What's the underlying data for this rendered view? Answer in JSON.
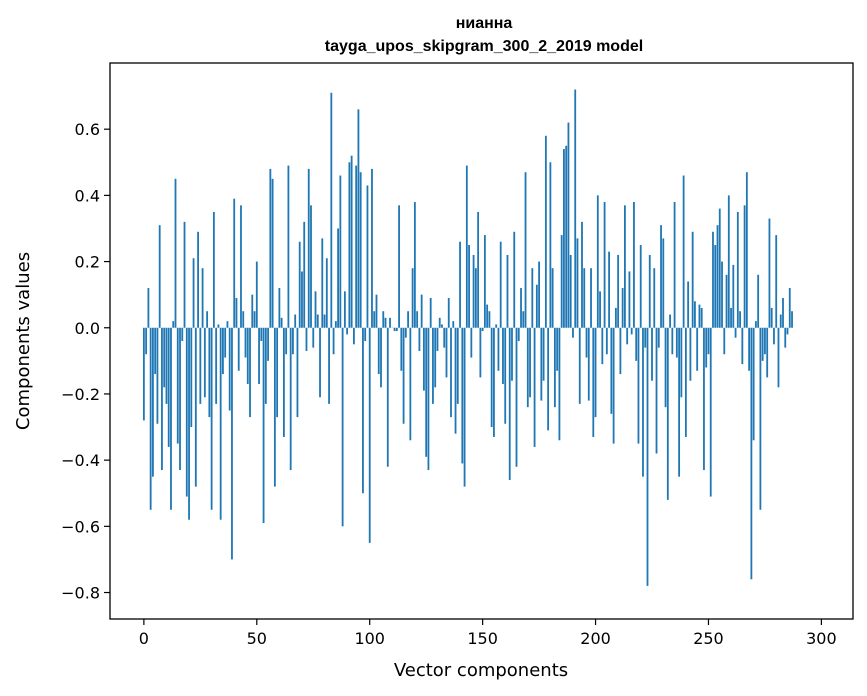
{
  "chart_data": {
    "type": "bar",
    "title": "нианна",
    "subtitle": "tayga_upos_skipgram_300_2_2019 model",
    "xlabel": "Vector components",
    "ylabel": "Components values",
    "xlim": [
      -15,
      314
    ],
    "ylim": [
      -0.88,
      0.8
    ],
    "xticks": [
      0,
      50,
      100,
      150,
      200,
      250,
      300
    ],
    "xtick_labels": [
      "0",
      "50",
      "100",
      "150",
      "200",
      "250",
      "300"
    ],
    "yticks": [
      -0.8,
      -0.6,
      -0.4,
      -0.2,
      0.0,
      0.2,
      0.4,
      0.6
    ],
    "ytick_labels": [
      "−0.8",
      "−0.6",
      "−0.4",
      "−0.2",
      "0.0",
      "0.2",
      "0.4",
      "0.6"
    ],
    "bar_color": "#1f77b4",
    "values": [
      -0.28,
      -0.08,
      0.12,
      -0.55,
      -0.45,
      -0.14,
      -0.29,
      0.31,
      -0.43,
      -0.18,
      -0.23,
      -0.36,
      -0.55,
      0.02,
      0.45,
      -0.35,
      -0.43,
      -0.04,
      0.32,
      -0.51,
      -0.58,
      -0.3,
      0.21,
      -0.48,
      0.29,
      -0.23,
      0.18,
      -0.21,
      0.05,
      -0.27,
      -0.55,
      0.35,
      -0.23,
      0.01,
      -0.58,
      -0.14,
      -0.09,
      0.02,
      -0.25,
      -0.7,
      0.39,
      0.09,
      -0.13,
      0.37,
      0.05,
      -0.09,
      -0.17,
      -0.27,
      0.1,
      0.05,
      0.2,
      -0.17,
      -0.04,
      -0.59,
      -0.23,
      -0.1,
      0.48,
      0.45,
      -0.48,
      -0.27,
      0.12,
      0.03,
      -0.33,
      -0.08,
      0.49,
      -0.43,
      -0.08,
      0.04,
      -0.27,
      0.26,
      0.17,
      0.32,
      -0.07,
      0.48,
      0.37,
      -0.06,
      0.11,
      0.04,
      -0.21,
      0.27,
      0.04,
      0.21,
      -0.23,
      0.71,
      -0.08,
      0.02,
      0.3,
      0.46,
      -0.6,
      0.11,
      -0.02,
      0.5,
      0.52,
      -0.05,
      0.49,
      0.66,
      0.47,
      -0.5,
      -0.04,
      0.43,
      -0.65,
      0.48,
      0.05,
      0.1,
      -0.14,
      -0.18,
      0.05,
      0.03,
      -0.42,
      0.03,
      0.0,
      -0.01,
      -0.01,
      0.37,
      -0.13,
      -0.29,
      -0.03,
      0.05,
      -0.34,
      0.18,
      0.38,
      0.05,
      -0.07,
      0.1,
      -0.19,
      -0.39,
      -0.43,
      0.09,
      -0.23,
      -0.18,
      -0.07,
      0.03,
      0.01,
      -0.06,
      -0.15,
      0.09,
      -0.27,
      0.02,
      -0.32,
      -0.23,
      0.26,
      -0.41,
      -0.48,
      0.49,
      0.25,
      -0.09,
      0.22,
      0.18,
      0.35,
      -0.15,
      -0.01,
      0.28,
      0.07,
      0.05,
      -0.3,
      -0.33,
      0.01,
      -0.13,
      0.26,
      -0.17,
      -0.29,
      0.22,
      -0.46,
      -0.16,
      0.29,
      -0.42,
      -0.04,
      0.12,
      0.05,
      0.47,
      -0.24,
      -0.21,
      0.18,
      -0.36,
      0.13,
      0.2,
      -0.22,
      -0.16,
      0.58,
      -0.31,
      0.5,
      0.18,
      -0.24,
      -0.13,
      -0.34,
      0.28,
      0.54,
      0.55,
      0.62,
      0.22,
      -0.03,
      0.72,
      0.27,
      -0.23,
      0.32,
      0.18,
      -0.09,
      -0.22,
      0.18,
      -0.33,
      -0.27,
      0.4,
      0.11,
      -0.11,
      0.38,
      -0.08,
      0.23,
      -0.26,
      -0.35,
      0.06,
      0.22,
      -0.14,
      0.12,
      0.37,
      -0.05,
      0.17,
      -0.02,
      0.38,
      -0.1,
      -0.35,
      0.25,
      -0.45,
      -0.06,
      -0.78,
      0.22,
      -0.16,
      0.18,
      -0.38,
      -0.06,
      0.31,
      0.27,
      -0.24,
      -0.52,
      0.04,
      -0.08,
      0.38,
      -0.09,
      -0.45,
      -0.21,
      0.46,
      -0.33,
      0.14,
      -0.16,
      0.29,
      0.08,
      -0.13,
      0.07,
      0.06,
      -0.43,
      -0.12,
      -0.08,
      -0.51,
      0.29,
      0.25,
      0.31,
      0.36,
      0.2,
      -0.08,
      0.16,
      0.4,
      0.06,
      0.19,
      -0.03,
      0.35,
      0.05,
      -0.11,
      0.37,
      0.47,
      -0.13,
      -0.76,
      -0.34,
      0.02,
      0.16,
      -0.55,
      -0.1,
      -0.08,
      -0.15,
      0.33,
      0.06,
      -0.05,
      0.28,
      -0.18,
      0.04,
      0.09,
      -0.06,
      -0.02,
      0.12,
      0.05
    ]
  }
}
